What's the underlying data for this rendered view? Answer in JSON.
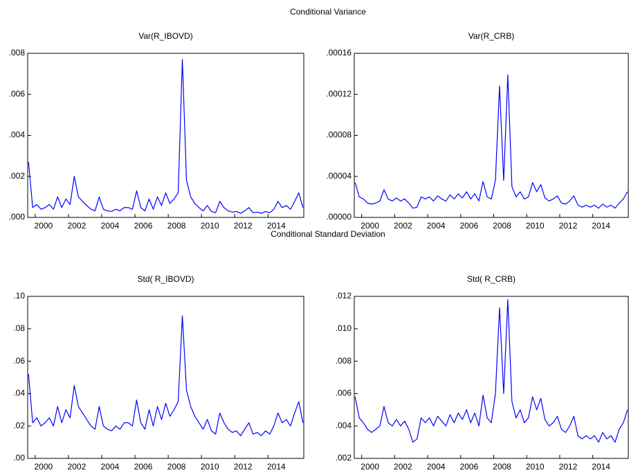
{
  "headings": [
    "Conditional Variance",
    "Conditional Standard Deviation"
  ],
  "chart_data": [
    {
      "type": "line",
      "title": "Var(R_IBOVD)",
      "color": "#0000ff",
      "x": [
        1999.1,
        1999.35,
        1999.6,
        1999.85,
        2000.1,
        2000.35,
        2000.6,
        2000.85,
        2001.1,
        2001.35,
        2001.6,
        2001.85,
        2002.1,
        2002.35,
        2002.6,
        2002.85,
        2003.1,
        2003.35,
        2003.6,
        2003.85,
        2004.1,
        2004.35,
        2004.6,
        2004.85,
        2005.1,
        2005.35,
        2005.6,
        2005.85,
        2006.1,
        2006.35,
        2006.6,
        2006.85,
        2007.1,
        2007.35,
        2007.6,
        2007.85,
        2008.1,
        2008.35,
        2008.6,
        2008.85,
        2009.1,
        2009.35,
        2009.6,
        2009.85,
        2010.1,
        2010.35,
        2010.6,
        2010.85,
        2011.1,
        2011.35,
        2011.6,
        2011.85,
        2012.1,
        2012.35,
        2012.6,
        2012.85,
        2013.1,
        2013.35,
        2013.6,
        2013.85,
        2014.1,
        2014.35,
        2014.6,
        2014.85,
        2015.1,
        2015.35,
        2015.6
      ],
      "values": [
        0.0027,
        0.00048,
        0.00063,
        0.0004,
        0.00048,
        0.00063,
        0.0004,
        0.001,
        0.00048,
        0.0009,
        0.00063,
        0.002,
        0.001,
        0.00078,
        0.00058,
        0.0004,
        0.00032,
        0.001,
        0.0004,
        0.00032,
        0.00029,
        0.0004,
        0.00032,
        0.00048,
        0.00048,
        0.0004,
        0.0013,
        0.00048,
        0.00032,
        0.0009,
        0.0004,
        0.001,
        0.00058,
        0.0012,
        0.00068,
        0.0009,
        0.0012,
        0.0077,
        0.0018,
        0.001,
        0.00068,
        0.00048,
        0.00032,
        0.00058,
        0.00029,
        0.00023,
        0.00078,
        0.00048,
        0.00032,
        0.00026,
        0.00029,
        0.0002,
        0.00032,
        0.00048,
        0.00023,
        0.00026,
        0.0002,
        0.00029,
        0.00023,
        0.0004,
        0.00078,
        0.00048,
        0.00058,
        0.0004,
        0.00078,
        0.0012,
        0.00048
      ],
      "xlim": [
        1999.05,
        2015.65
      ],
      "xticks": [
        2000,
        2002,
        2004,
        2006,
        2008,
        2010,
        2012,
        2014
      ],
      "ylim": [
        0,
        0.008
      ],
      "yticks": [
        {
          "value": 0,
          "label": ".000"
        },
        {
          "value": 0.002,
          "label": ".002"
        },
        {
          "value": 0.004,
          "label": ".004"
        },
        {
          "value": 0.006,
          "label": ".006"
        },
        {
          "value": 0.008,
          "label": ".008"
        }
      ]
    },
    {
      "type": "line",
      "title": "Var(R_CRB)",
      "color": "#0000ff",
      "x": [
        1999.1,
        1999.35,
        1999.6,
        1999.85,
        2000.1,
        2000.35,
        2000.6,
        2000.85,
        2001.1,
        2001.35,
        2001.6,
        2001.85,
        2002.1,
        2002.35,
        2002.6,
        2002.85,
        2003.1,
        2003.35,
        2003.6,
        2003.85,
        2004.1,
        2004.35,
        2004.6,
        2004.85,
        2005.1,
        2005.35,
        2005.6,
        2005.85,
        2006.1,
        2006.35,
        2006.6,
        2006.85,
        2007.1,
        2007.35,
        2007.6,
        2007.85,
        2008.1,
        2008.35,
        2008.6,
        2008.85,
        2009.1,
        2009.35,
        2009.6,
        2009.85,
        2010.1,
        2010.35,
        2010.6,
        2010.85,
        2011.1,
        2011.35,
        2011.6,
        2011.85,
        2012.1,
        2012.35,
        2012.6,
        2012.85,
        2013.1,
        2013.35,
        2013.6,
        2013.85,
        2014.1,
        2014.35,
        2014.6,
        2014.85,
        2015.1,
        2015.35,
        2015.6
      ],
      "values": [
        3.4e-05,
        2e-05,
        1.8e-05,
        1.4e-05,
        1.3e-05,
        1.4e-05,
        1.6e-05,
        2.7e-05,
        1.8e-05,
        1.6e-05,
        1.9e-05,
        1.6e-05,
        1.8e-05,
        1.4e-05,
        9e-06,
        1e-05,
        2e-05,
        1.8e-05,
        2e-05,
        1.6e-05,
        2.1e-05,
        1.8e-05,
        1.6e-05,
        2.2e-05,
        1.8e-05,
        2.3e-05,
        1.9e-05,
        2.5e-05,
        1.8e-05,
        2.3e-05,
        1.6e-05,
        3.5e-05,
        2e-05,
        1.8e-05,
        3.6e-05,
        0.000128,
        3.6e-05,
        0.000139,
        3e-05,
        2e-05,
        2.5e-05,
        1.8e-05,
        2e-05,
        3.4e-05,
        2.5e-05,
        3.2e-05,
        1.9e-05,
        1.6e-05,
        1.8e-05,
        2.1e-05,
        1.4e-05,
        1.3e-05,
        1.6e-05,
        2.1e-05,
        1.2e-05,
        1e-05,
        1.2e-05,
        1e-05,
        1.2e-05,
        9e-06,
        1.3e-05,
        1e-05,
        1.2e-05,
        9e-06,
        1.4e-05,
        1.8e-05,
        2.5e-05
      ],
      "xlim": [
        1999.05,
        2015.65
      ],
      "xticks": [
        2000,
        2002,
        2004,
        2006,
        2008,
        2010,
        2012,
        2014
      ],
      "ylim": [
        0,
        0.00016
      ],
      "yticks": [
        {
          "value": 0,
          "label": ".00000"
        },
        {
          "value": 4e-05,
          "label": ".00004"
        },
        {
          "value": 8e-05,
          "label": ".00008"
        },
        {
          "value": 0.00012,
          "label": ".00012"
        },
        {
          "value": 0.00016,
          "label": ".00016"
        }
      ]
    },
    {
      "type": "line",
      "title": "Std( R_IBOVD)",
      "color": "#0000ff",
      "x": [
        1999.1,
        1999.35,
        1999.6,
        1999.85,
        2000.1,
        2000.35,
        2000.6,
        2000.85,
        2001.1,
        2001.35,
        2001.6,
        2001.85,
        2002.1,
        2002.35,
        2002.6,
        2002.85,
        2003.1,
        2003.35,
        2003.6,
        2003.85,
        2004.1,
        2004.35,
        2004.6,
        2004.85,
        2005.1,
        2005.35,
        2005.6,
        2005.85,
        2006.1,
        2006.35,
        2006.6,
        2006.85,
        2007.1,
        2007.35,
        2007.6,
        2007.85,
        2008.1,
        2008.35,
        2008.6,
        2008.85,
        2009.1,
        2009.35,
        2009.6,
        2009.85,
        2010.1,
        2010.35,
        2010.6,
        2010.85,
        2011.1,
        2011.35,
        2011.6,
        2011.85,
        2012.1,
        2012.35,
        2012.6,
        2012.85,
        2013.1,
        2013.35,
        2013.6,
        2013.85,
        2014.1,
        2014.35,
        2014.6,
        2014.85,
        2015.1,
        2015.35,
        2015.6
      ],
      "values": [
        0.052,
        0.022,
        0.025,
        0.02,
        0.022,
        0.025,
        0.02,
        0.032,
        0.022,
        0.03,
        0.025,
        0.045,
        0.032,
        0.028,
        0.024,
        0.02,
        0.018,
        0.032,
        0.02,
        0.018,
        0.017,
        0.02,
        0.018,
        0.022,
        0.022,
        0.02,
        0.036,
        0.022,
        0.018,
        0.03,
        0.02,
        0.032,
        0.024,
        0.034,
        0.026,
        0.03,
        0.035,
        0.088,
        0.042,
        0.032,
        0.026,
        0.022,
        0.018,
        0.024,
        0.017,
        0.015,
        0.028,
        0.022,
        0.018,
        0.016,
        0.017,
        0.014,
        0.018,
        0.022,
        0.015,
        0.016,
        0.014,
        0.017,
        0.015,
        0.02,
        0.028,
        0.022,
        0.024,
        0.02,
        0.028,
        0.035,
        0.022
      ],
      "xlim": [
        1999.05,
        2015.65
      ],
      "xticks": [
        2000,
        2002,
        2004,
        2006,
        2008,
        2010,
        2012,
        2014
      ],
      "ylim": [
        0,
        0.1
      ],
      "yticks": [
        {
          "value": 0,
          "label": ".00"
        },
        {
          "value": 0.02,
          "label": ".02"
        },
        {
          "value": 0.04,
          "label": ".04"
        },
        {
          "value": 0.06,
          "label": ".06"
        },
        {
          "value": 0.08,
          "label": ".08"
        },
        {
          "value": 0.1,
          "label": ".10"
        }
      ]
    },
    {
      "type": "line",
      "title": "Std( R_CRB)",
      "color": "#0000ff",
      "x": [
        1999.1,
        1999.35,
        1999.6,
        1999.85,
        2000.1,
        2000.35,
        2000.6,
        2000.85,
        2001.1,
        2001.35,
        2001.6,
        2001.85,
        2002.1,
        2002.35,
        2002.6,
        2002.85,
        2003.1,
        2003.35,
        2003.6,
        2003.85,
        2004.1,
        2004.35,
        2004.6,
        2004.85,
        2005.1,
        2005.35,
        2005.6,
        2005.85,
        2006.1,
        2006.35,
        2006.6,
        2006.85,
        2007.1,
        2007.35,
        2007.6,
        2007.85,
        2008.1,
        2008.35,
        2008.6,
        2008.85,
        2009.1,
        2009.35,
        2009.6,
        2009.85,
        2010.1,
        2010.35,
        2010.6,
        2010.85,
        2011.1,
        2011.35,
        2011.6,
        2011.85,
        2012.1,
        2012.35,
        2012.6,
        2012.85,
        2013.1,
        2013.35,
        2013.6,
        2013.85,
        2014.1,
        2014.35,
        2014.6,
        2014.85,
        2015.1,
        2015.35,
        2015.6
      ],
      "values": [
        0.0058,
        0.0045,
        0.0042,
        0.0038,
        0.0036,
        0.0038,
        0.004,
        0.0052,
        0.0042,
        0.004,
        0.0044,
        0.004,
        0.0043,
        0.0038,
        0.003,
        0.0032,
        0.0045,
        0.0042,
        0.0045,
        0.004,
        0.0046,
        0.0043,
        0.004,
        0.0047,
        0.0042,
        0.0048,
        0.0044,
        0.005,
        0.0042,
        0.0048,
        0.004,
        0.0059,
        0.0045,
        0.0042,
        0.006,
        0.0113,
        0.006,
        0.0118,
        0.0055,
        0.0045,
        0.005,
        0.0042,
        0.0045,
        0.0058,
        0.005,
        0.0057,
        0.0044,
        0.004,
        0.0042,
        0.0046,
        0.0038,
        0.0036,
        0.004,
        0.0046,
        0.0034,
        0.0032,
        0.0034,
        0.0032,
        0.0034,
        0.003,
        0.0036,
        0.0032,
        0.0034,
        0.003,
        0.0038,
        0.0042,
        0.005
      ],
      "xlim": [
        1999.05,
        2015.65
      ],
      "xticks": [
        2000,
        2002,
        2004,
        2006,
        2008,
        2010,
        2012,
        2014
      ],
      "ylim": [
        0.002,
        0.012
      ],
      "yticks": [
        {
          "value": 0.002,
          "label": ".002"
        },
        {
          "value": 0.004,
          "label": ".004"
        },
        {
          "value": 0.006,
          "label": ".006"
        },
        {
          "value": 0.008,
          "label": ".008"
        },
        {
          "value": 0.01,
          "label": ".010"
        },
        {
          "value": 0.012,
          "label": ".012"
        }
      ]
    }
  ]
}
